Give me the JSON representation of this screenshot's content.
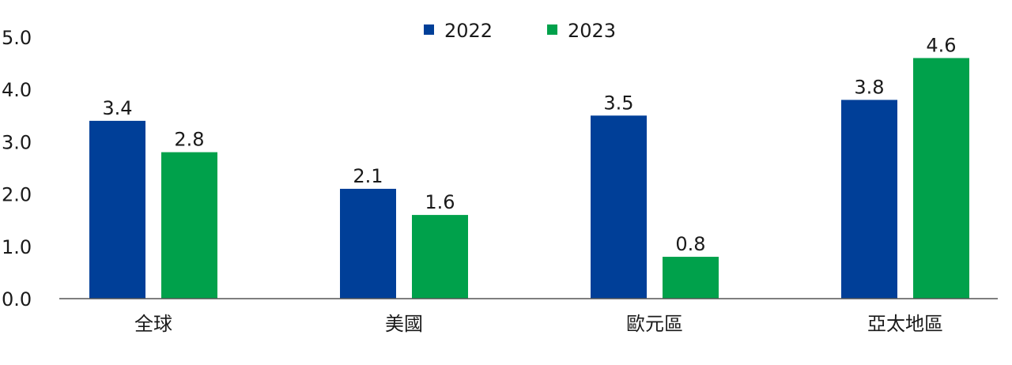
{
  "chart_data": {
    "type": "bar",
    "categories": [
      "全球",
      "美國",
      "歐元區",
      "亞太地區"
    ],
    "series": [
      {
        "name": "2022",
        "color": "#003f98",
        "values": [
          3.4,
          2.1,
          3.5,
          3.8
        ]
      },
      {
        "name": "2023",
        "color": "#00a14b",
        "values": [
          2.8,
          1.6,
          0.8,
          4.6
        ]
      }
    ],
    "y_ticks": [
      "0.0",
      "1.0",
      "2.0",
      "3.0",
      "4.0",
      "5.0"
    ],
    "ylim": [
      0,
      5
    ],
    "data_labels": [
      [
        "3.4",
        "2.1",
        "3.5",
        "3.8"
      ],
      [
        "2.8",
        "1.6",
        "0.8",
        "4.6"
      ]
    ],
    "legend_position": "top-center",
    "grid": false
  }
}
